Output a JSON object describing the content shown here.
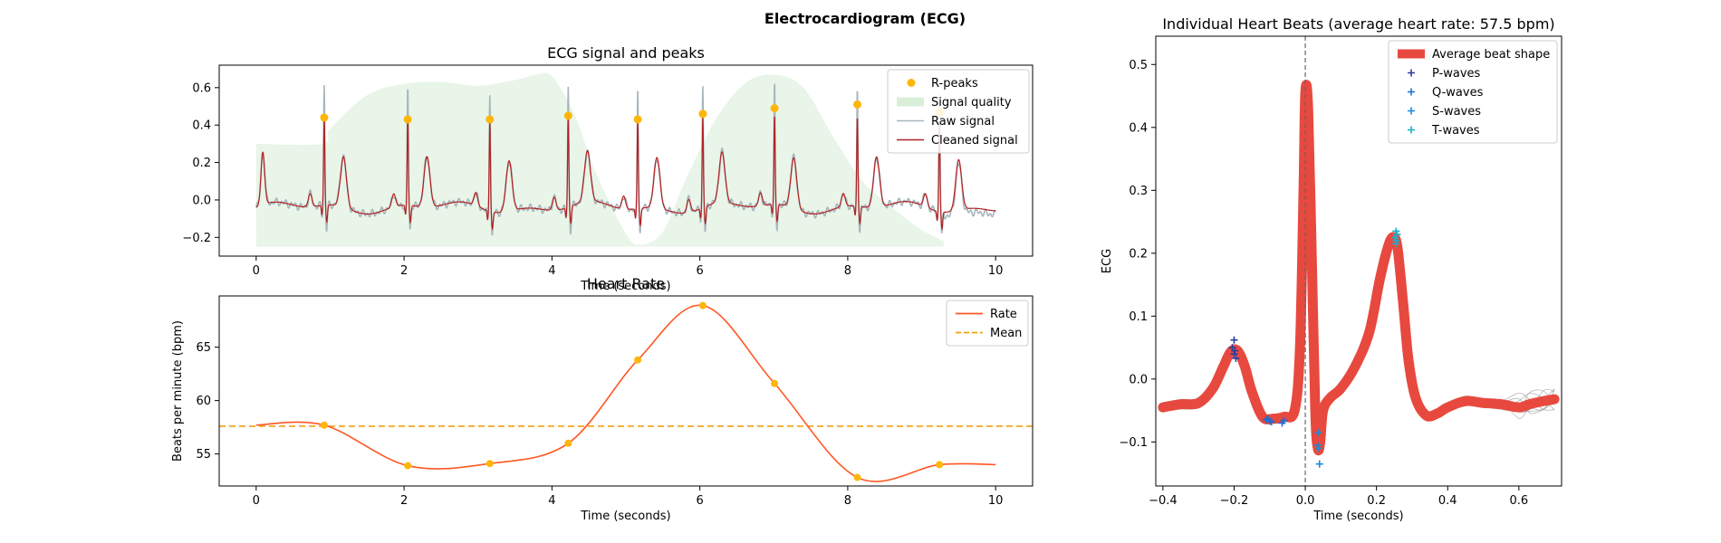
{
  "figure": {
    "title": "Electrocardiogram (ECG)"
  },
  "chart_data": [
    {
      "id": "ecg",
      "type": "line",
      "title": "ECG signal and peaks",
      "xlabel": "Time (seconds)",
      "ylabel": "",
      "xlim": [
        -0.5,
        10.5
      ],
      "ylim": [
        -0.3,
        0.72
      ],
      "xticks": [
        0,
        2,
        4,
        6,
        8,
        10
      ],
      "yticks": [
        -0.2,
        0.0,
        0.2,
        0.4,
        0.6
      ],
      "grid": false,
      "legend": "top-right",
      "colors": {
        "raw": "#a7b5bc",
        "cleaned": "#b22222",
        "peaks": "#ffb60a",
        "quality": "#d9eed8"
      },
      "legend_entries": [
        "R-peaks",
        "Signal quality",
        "Raw signal",
        "Cleaned signal"
      ],
      "r_peaks": {
        "x": [
          0.92,
          2.05,
          3.16,
          4.22,
          5.16,
          6.04,
          7.01,
          8.13,
          9.24
        ],
        "y": [
          0.44,
          0.43,
          0.43,
          0.45,
          0.43,
          0.46,
          0.49,
          0.51,
          0.47
        ]
      },
      "signal_quality": {
        "x": [
          0.0,
          0.9,
          1.0,
          1.5,
          2.0,
          2.5,
          3.0,
          3.5,
          3.8,
          4.0,
          4.3,
          4.6,
          5.0,
          5.2,
          5.5,
          5.8,
          6.2,
          6.6,
          7.0,
          7.4,
          7.8,
          8.2,
          8.6,
          9.0,
          9.3
        ],
        "y": [
          0.3,
          0.3,
          0.38,
          0.56,
          0.62,
          0.63,
          0.61,
          0.64,
          0.67,
          0.66,
          0.46,
          0.14,
          -0.18,
          -0.24,
          -0.17,
          0.1,
          0.42,
          0.62,
          0.67,
          0.6,
          0.34,
          0.1,
          -0.04,
          -0.16,
          -0.22
        ],
        "baseline": -0.25
      }
    },
    {
      "id": "rate",
      "type": "line",
      "title": "Heart Rate",
      "xlabel": "Time (seconds)",
      "ylabel": "Beats per minute (bpm)",
      "xlim": [
        -0.5,
        10.5
      ],
      "ylim": [
        52.0,
        69.8
      ],
      "xticks": [
        0,
        2,
        4,
        6,
        8,
        10
      ],
      "yticks": [
        55,
        60,
        65
      ],
      "grid": false,
      "legend": "top-right",
      "colors": {
        "rate": "#ff5722",
        "mean": "#f0a010",
        "points": "#ffb60a"
      },
      "legend_entries": [
        "Rate",
        "Mean"
      ],
      "mean": 57.6,
      "series": [
        {
          "name": "Rate",
          "x": [
            0,
            0.92,
            2.05,
            3.16,
            4.22,
            5.16,
            6.04,
            7.01,
            8.13,
            9.24,
            10.0
          ],
          "y": [
            57.7,
            57.7,
            53.9,
            54.1,
            56.0,
            63.8,
            68.9,
            61.6,
            52.8,
            54.0,
            54.0
          ]
        }
      ],
      "points": {
        "x": [
          0.92,
          2.05,
          3.16,
          4.22,
          5.16,
          6.04,
          7.01,
          8.13,
          9.24
        ],
        "y": [
          57.7,
          53.9,
          54.1,
          56.0,
          63.8,
          68.9,
          61.6,
          52.8,
          54.0
        ]
      }
    },
    {
      "id": "beats",
      "type": "line",
      "title": "Individual Heart Beats (average heart rate: 57.5 bpm)",
      "xlabel": "Time (seconds)",
      "ylabel": "ECG",
      "xlim": [
        -0.42,
        0.72
      ],
      "ylim": [
        -0.17,
        0.545
      ],
      "xticks": [
        -0.4,
        -0.2,
        0.0,
        0.2,
        0.4,
        0.6
      ],
      "yticks": [
        -0.1,
        0.0,
        0.1,
        0.2,
        0.3,
        0.4,
        0.5
      ],
      "grid": false,
      "legend": "top-right",
      "colors": {
        "avg": "#e8493f",
        "p": "#2a3f9e",
        "q": "#1e6fd0",
        "s": "#1a8ad8",
        "t": "#18b0cc",
        "beats": "#9a9a9a"
      },
      "legend_entries": [
        "Average beat shape",
        "P-waves",
        "Q-waves",
        "S-waves",
        "T-waves"
      ],
      "average_beat": {
        "x": [
          -0.4,
          -0.35,
          -0.3,
          -0.26,
          -0.23,
          -0.21,
          -0.19,
          -0.17,
          -0.15,
          -0.12,
          -0.09,
          -0.06,
          -0.03,
          -0.015,
          -0.005,
          0.0,
          0.008,
          0.018,
          0.028,
          0.035,
          0.042,
          0.05,
          0.07,
          0.1,
          0.14,
          0.18,
          0.21,
          0.235,
          0.25,
          0.26,
          0.275,
          0.29,
          0.31,
          0.34,
          0.37,
          0.4,
          0.45,
          0.5,
          0.55,
          0.6,
          0.63,
          0.67,
          0.7
        ],
        "y": [
          -0.045,
          -0.04,
          -0.038,
          -0.015,
          0.02,
          0.043,
          0.045,
          0.02,
          -0.02,
          -0.06,
          -0.063,
          -0.06,
          -0.05,
          0.05,
          0.3,
          0.455,
          0.43,
          0.2,
          -0.05,
          -0.11,
          -0.1,
          -0.05,
          -0.03,
          -0.015,
          0.02,
          0.075,
          0.16,
          0.215,
          0.225,
          0.205,
          0.12,
          0.03,
          -0.03,
          -0.058,
          -0.055,
          -0.045,
          -0.035,
          -0.038,
          -0.04,
          -0.045,
          -0.04,
          -0.035,
          -0.032
        ]
      },
      "p_waves": {
        "x": [
          -0.2,
          -0.205,
          -0.198,
          -0.2,
          -0.195
        ],
        "y": [
          0.062,
          0.05,
          0.045,
          0.04,
          0.033
        ]
      },
      "q_waves": {
        "x": [
          -0.11,
          -0.1,
          -0.105,
          -0.095,
          -0.065,
          -0.06
        ],
        "y": [
          -0.065,
          -0.067,
          -0.063,
          -0.068,
          -0.07,
          -0.066
        ]
      },
      "s_waves": {
        "x": [
          0.035,
          0.038,
          0.036,
          0.04
        ],
        "y": [
          -0.105,
          -0.11,
          -0.085,
          -0.135
        ]
      },
      "t_waves": {
        "x": [
          0.255,
          0.258,
          0.252,
          0.256,
          0.254
        ],
        "y": [
          0.235,
          0.23,
          0.225,
          0.22,
          0.215
        ]
      }
    }
  ]
}
